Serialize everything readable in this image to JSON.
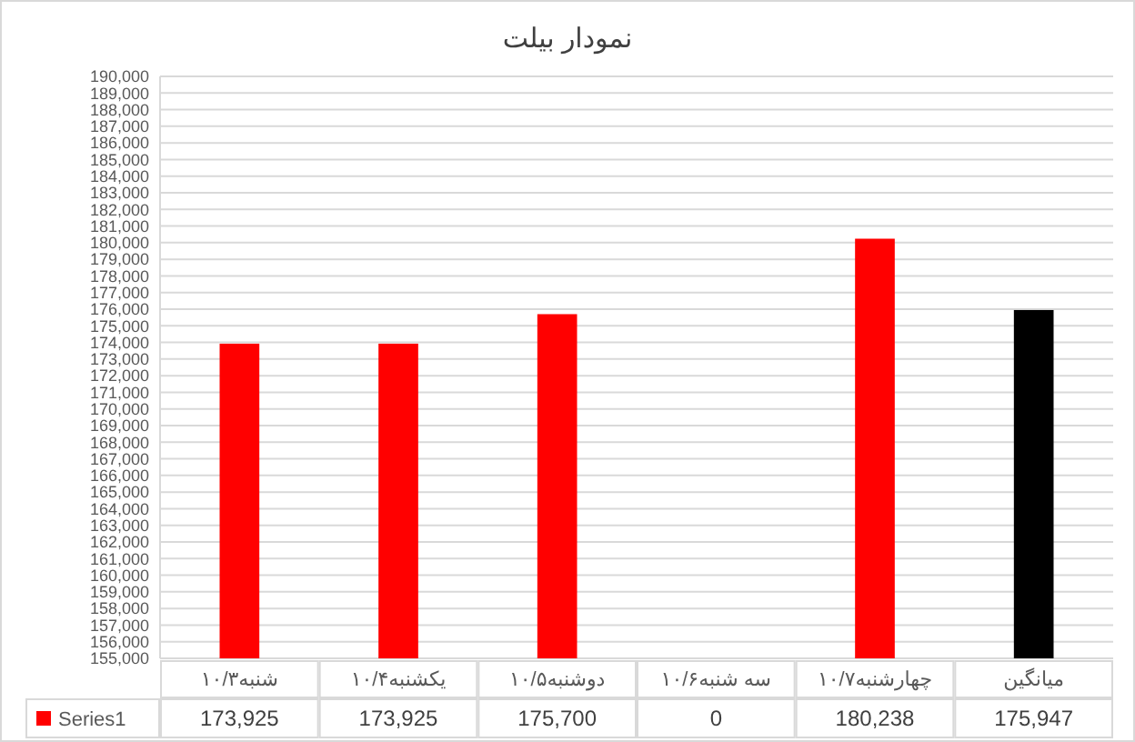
{
  "chart_data": {
    "type": "bar",
    "title": "نمودار بیلت",
    "categories": [
      "شنبه۱۰/۳",
      "یکشنبه۱۰/۴",
      "دوشنبه۱۰/۵",
      "سه شنبه۱۰/۶",
      "چهارشنبه۱۰/۷",
      "میانگین"
    ],
    "series": [
      {
        "name": "Series1",
        "color": "#ff0000",
        "colors": [
          "#ff0000",
          "#ff0000",
          "#ff0000",
          null,
          "#ff0000",
          "#000000"
        ],
        "values": [
          173925,
          173925,
          175700,
          null,
          180238,
          175947
        ],
        "value_labels": [
          "173,925",
          "173,925",
          "175,700",
          "0",
          "180,238",
          "175,947"
        ]
      }
    ],
    "ylim": [
      155000,
      190000
    ],
    "yticks": [
      {
        "value": 155000,
        "label": "155,000"
      },
      {
        "value": 156000,
        "label": "156,000"
      },
      {
        "value": 157000,
        "label": "157,000"
      },
      {
        "value": 158000,
        "label": "158,000"
      },
      {
        "value": 159000,
        "label": "159,000"
      },
      {
        "value": 160000,
        "label": "160,000"
      },
      {
        "value": 161000,
        "label": "161,000"
      },
      {
        "value": 162000,
        "label": "162,000"
      },
      {
        "value": 163000,
        "label": "163,000"
      },
      {
        "value": 164000,
        "label": "164,000"
      },
      {
        "value": 165000,
        "label": "165,000"
      },
      {
        "value": 166000,
        "label": "166,000"
      },
      {
        "value": 167000,
        "label": "167,000"
      },
      {
        "value": 168000,
        "label": "168,000"
      },
      {
        "value": 169000,
        "label": "169,000"
      },
      {
        "value": 170000,
        "label": "170,000"
      },
      {
        "value": 171000,
        "label": "171,000"
      },
      {
        "value": 172000,
        "label": "172,000"
      },
      {
        "value": 173000,
        "label": "173,000"
      },
      {
        "value": 174000,
        "label": "174,000"
      },
      {
        "value": 175000,
        "label": "175,000"
      },
      {
        "value": 176000,
        "label": "176,000"
      },
      {
        "value": 177000,
        "label": "177,000"
      },
      {
        "value": 178000,
        "label": "178,000"
      },
      {
        "value": 179000,
        "label": "179,000"
      },
      {
        "value": 180000,
        "label": "180,000"
      },
      {
        "value": 181000,
        "label": "181,000"
      },
      {
        "value": 182000,
        "label": "182,000"
      },
      {
        "value": 183000,
        "label": "183,000"
      },
      {
        "value": 184000,
        "label": "184,000"
      },
      {
        "value": 185000,
        "label": "185,000"
      },
      {
        "value": 186000,
        "label": "186,000"
      },
      {
        "value": 187000,
        "label": "187,000"
      },
      {
        "value": 188000,
        "label": "188,000"
      },
      {
        "value": 189000,
        "label": "189,000"
      },
      {
        "value": 190000,
        "label": "190,000"
      }
    ],
    "grid": "y",
    "legend": "bottom"
  }
}
